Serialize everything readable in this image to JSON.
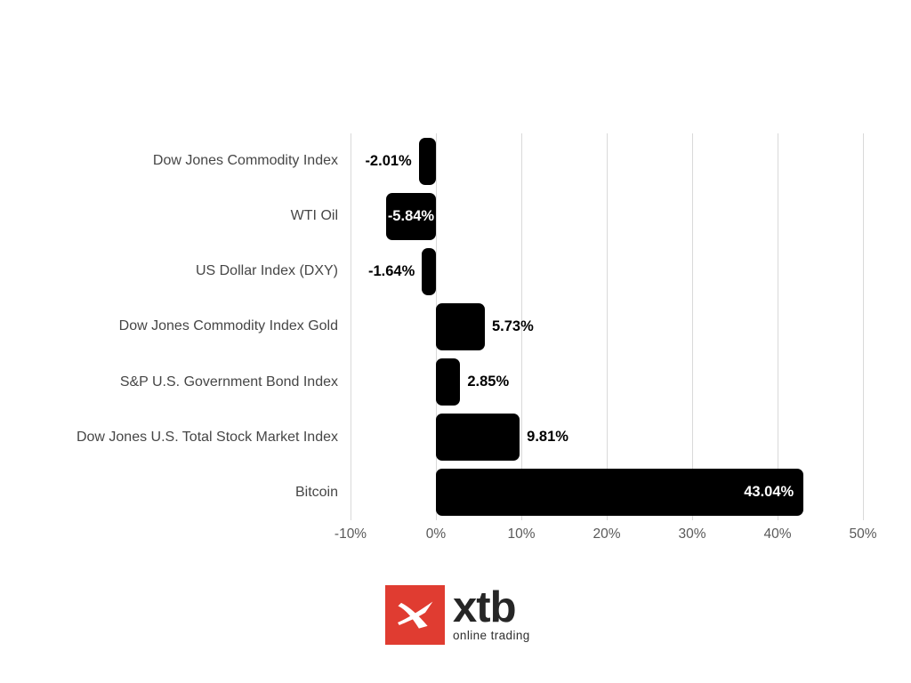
{
  "chart_data": {
    "type": "bar",
    "orientation": "horizontal",
    "title": "",
    "categories": [
      "Dow Jones Commodity Index",
      "WTI Oil",
      "US Dollar Index (DXY)",
      "Dow Jones Commodity Index Gold",
      "S&P U.S. Government Bond Index",
      "Dow Jones U.S. Total Stock Market Index",
      "Bitcoin"
    ],
    "values": [
      -2.01,
      -5.84,
      -1.64,
      5.73,
      2.85,
      9.81,
      43.04
    ],
    "value_labels": [
      "-2.01%",
      "-5.84%",
      "-1.64%",
      "5.73%",
      "2.85%",
      "9.81%",
      "43.04%"
    ],
    "value_label_placement": [
      "outside-left",
      "inside-center",
      "outside-left",
      "outside-right",
      "outside-right",
      "outside-right",
      "inside-right"
    ],
    "xlim": [
      -10,
      50
    ],
    "x_tick_values": [
      -10,
      0,
      10,
      20,
      30,
      40,
      50
    ],
    "x_tick_labels": [
      "-10%",
      "0%",
      "10%",
      "20%",
      "30%",
      "40%",
      "50%"
    ],
    "grid": "vertical",
    "legend": "none",
    "colors": {
      "background": "#ffffff",
      "bar": "#000000",
      "gridline": "#d9d9d9",
      "category_label": "#464646",
      "tick_label": "#595959",
      "value_label_outside": "#000000",
      "value_label_inside": "#ffffff"
    }
  },
  "footer_logo": {
    "brand": "xtb",
    "tagline": "online trading",
    "mark_color": "#e03c31",
    "mark_glyph_color": "#ffffff",
    "brand_text_color": "#262626",
    "tagline_text_color": "#2e2e2e"
  }
}
